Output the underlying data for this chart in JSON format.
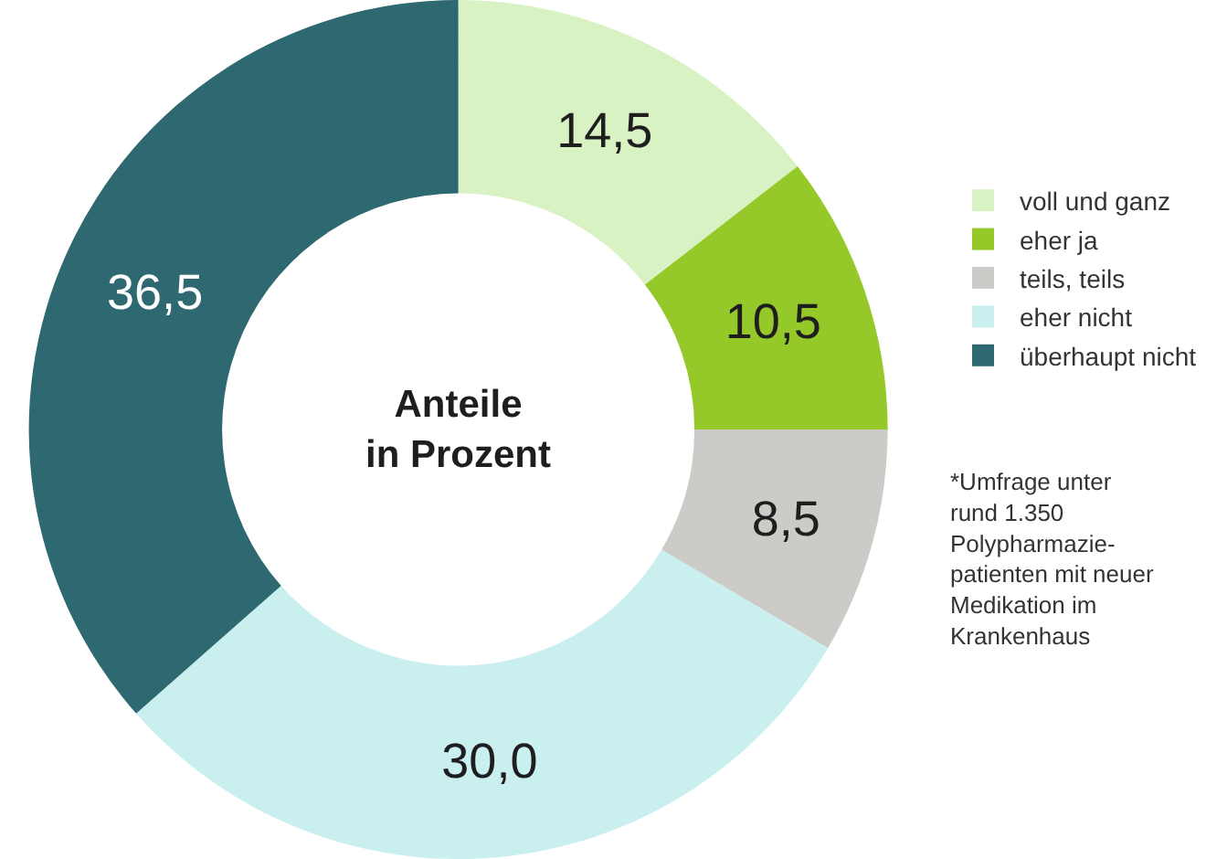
{
  "chart_data": {
    "type": "donut",
    "categories": [
      "voll und ganz",
      "eher ja",
      "teils, teils",
      "eher nicht",
      "überhaupt nicht"
    ],
    "values": [
      14.5,
      10.5,
      8.5,
      30.0,
      36.5
    ],
    "colors": [
      "#d9f2c4",
      "#95c92a",
      "#cdcbc7",
      "#c9efee",
      "#2e6870"
    ],
    "value_labels": [
      "14,5",
      "10,5",
      "8,5",
      "30,0",
      "36,5"
    ],
    "legend": "right",
    "annotations": [
      "Anteile\nin Prozent",
      "*Umfrage unter\nrund 1.350\nPolypharmazie-\npatienten mit neuer\nMedikation im\nKrankenhaus"
    ]
  }
}
